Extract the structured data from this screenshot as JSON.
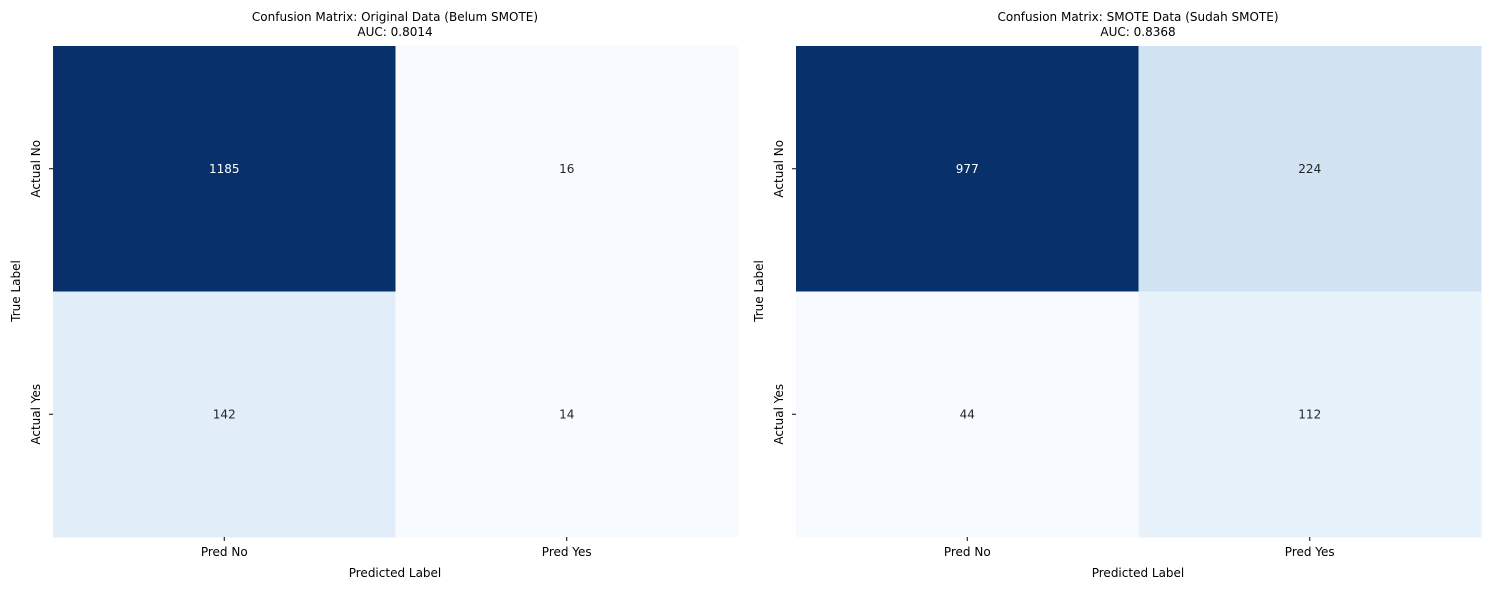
{
  "chart_data": [
    {
      "type": "heatmap",
      "title": "Confusion Matrix: Original Data (Belum SMOTE)",
      "subtitle": "AUC: 0.8014",
      "xlabel": "Predicted Label",
      "ylabel": "True Label",
      "x_categories": [
        "Pred No",
        "Pred Yes"
      ],
      "y_categories": [
        "Actual No",
        "Actual Yes"
      ],
      "values": [
        [
          1185,
          16
        ],
        [
          142,
          14
        ]
      ],
      "colormap": "Blues",
      "colorbar": false,
      "grid": false
    },
    {
      "type": "heatmap",
      "title": "Confusion Matrix: SMOTE Data (Sudah SMOTE)",
      "subtitle": "AUC: 0.8368",
      "xlabel": "Predicted Label",
      "ylabel": "True Label",
      "x_categories": [
        "Pred No",
        "Pred Yes"
      ],
      "y_categories": [
        "Actual No",
        "Actual Yes"
      ],
      "values": [
        [
          977,
          224
        ],
        [
          44,
          112
        ]
      ],
      "colormap": "Blues",
      "colorbar": false,
      "grid": false
    }
  ],
  "colors": {
    "low": "#f7fbff",
    "mid_low": "#deebf7",
    "mid": "#c6dbef",
    "high": "#08306b",
    "text_dark": "#262626",
    "text_light": "#ffffff"
  }
}
